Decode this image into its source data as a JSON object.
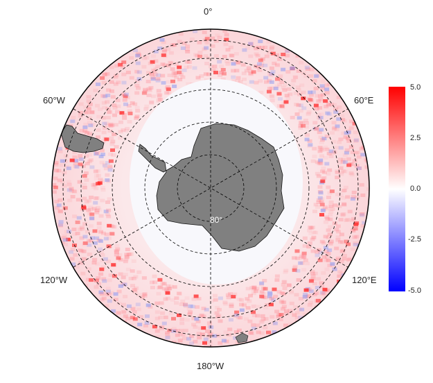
{
  "map": {
    "projection": "south-polar-stereographic",
    "longitude_labels": [
      {
        "name": "lon-0",
        "text": "0°"
      },
      {
        "name": "lon-60e",
        "text": "60°E"
      },
      {
        "name": "lon-120e",
        "text": "120°E"
      },
      {
        "name": "lon-180w",
        "text": "180°W"
      },
      {
        "name": "lon-120w",
        "text": "120°W"
      },
      {
        "name": "lon-60w",
        "text": "60°W"
      }
    ],
    "latitude_label": "80°",
    "land_color": "#808080",
    "ice_color": "#f7f7fb"
  },
  "colorbar": {
    "max_color": "#ff0000",
    "mid_color": "#ffffff",
    "min_color": "#0000ff",
    "range": [
      -5.0,
      5.0
    ],
    "ticks": [
      "5.0",
      "2.5",
      "0.0",
      "-2.5",
      "-5.0"
    ]
  }
}
